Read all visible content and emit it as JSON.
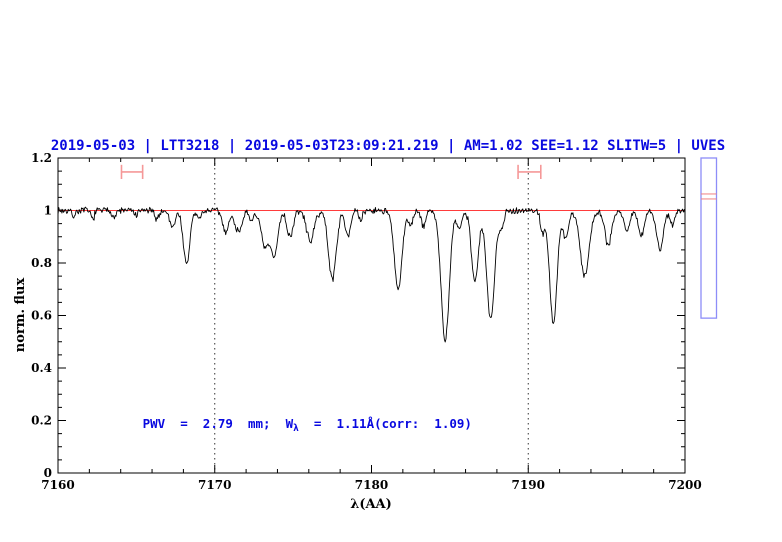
{
  "colors": {
    "accent_blue": "#0909e0",
    "trace_black": "#000000",
    "continuum_red": "#ff3b3b",
    "band_marker_red": "#f59898",
    "gauge_border_blue": "#8d8df8",
    "gauge_line_red": "#f08080",
    "dotted_line": "#333333",
    "background": "#ffffff"
  },
  "chart_data": {
    "type": "line",
    "title": "2019-05-03 | LTT3218 | 2019-05-03T23:09:21.219 | AM=1.02 SEE=1.12 SLITW=5 | UVES",
    "xlabel": "λ(AA)",
    "ylabel": "norm. flux",
    "xlim": [
      7160,
      7200
    ],
    "ylim": [
      0,
      1.2
    ],
    "grid": false,
    "x_ticks": [
      {
        "value": 7160,
        "label": "7160"
      },
      {
        "value": 7170,
        "label": "7170"
      },
      {
        "value": 7180,
        "label": "7180"
      },
      {
        "value": 7190,
        "label": "7190"
      },
      {
        "value": 7200,
        "label": "7200"
      }
    ],
    "x_minor_step": 2,
    "y_ticks": [
      {
        "value": 0,
        "label": "0"
      },
      {
        "value": 0.2,
        "label": "0.2"
      },
      {
        "value": 0.4,
        "label": "0.4"
      },
      {
        "value": 0.6,
        "label": "0.6"
      },
      {
        "value": 0.8,
        "label": "0.8"
      },
      {
        "value": 1,
        "label": "1"
      },
      {
        "value": 1.2,
        "label": "1.2"
      }
    ],
    "y_minor_step": 0.05,
    "continuum": {
      "level": 1.0
    },
    "dotted_vlines": [
      7170,
      7190
    ],
    "sample_step": 0.05,
    "noise_rms": 0.009,
    "absorption_lines": [
      [
        7161.0,
        0.02,
        0.12
      ],
      [
        7162.2,
        0.03,
        0.12
      ],
      [
        7163.6,
        0.025,
        0.12
      ],
      [
        7165.0,
        0.02,
        0.12
      ],
      [
        7166.3,
        0.03,
        0.15
      ],
      [
        7167.3,
        0.06,
        0.18
      ],
      [
        7168.2,
        0.21,
        0.2
      ],
      [
        7169.0,
        0.03,
        0.15
      ],
      [
        7170.7,
        0.08,
        0.2
      ],
      [
        7171.5,
        0.08,
        0.22
      ],
      [
        7172.3,
        0.04,
        0.15
      ],
      [
        7173.2,
        0.14,
        0.25
      ],
      [
        7173.8,
        0.17,
        0.22
      ],
      [
        7174.8,
        0.1,
        0.2
      ],
      [
        7176.1,
        0.115,
        0.25
      ],
      [
        7177.5,
        0.26,
        0.25
      ],
      [
        7178.5,
        0.09,
        0.18
      ],
      [
        7179.3,
        0.04,
        0.12
      ],
      [
        7181.7,
        0.3,
        0.25
      ],
      [
        7182.5,
        0.05,
        0.15
      ],
      [
        7183.3,
        0.06,
        0.15
      ],
      [
        7184.7,
        0.5,
        0.26
      ],
      [
        7185.6,
        0.07,
        0.15
      ],
      [
        7186.6,
        0.27,
        0.22
      ],
      [
        7187.6,
        0.42,
        0.25
      ],
      [
        7188.3,
        0.06,
        0.15
      ],
      [
        7190.9,
        0.08,
        0.13
      ],
      [
        7191.6,
        0.43,
        0.24
      ],
      [
        7192.4,
        0.1,
        0.18
      ],
      [
        7193.6,
        0.25,
        0.28
      ],
      [
        7195.1,
        0.13,
        0.22
      ],
      [
        7196.3,
        0.08,
        0.18
      ],
      [
        7197.2,
        0.1,
        0.18
      ],
      [
        7198.4,
        0.15,
        0.22
      ],
      [
        7199.2,
        0.05,
        0.15
      ]
    ],
    "band_markers": {
      "cap_half_flux": 0.027,
      "items": [
        {
          "x_min": 7164.05,
          "x_max": 7165.4,
          "y": 1.147
        },
        {
          "x_min": 7189.35,
          "x_max": 7190.8,
          "y": 1.147
        }
      ]
    },
    "side_gauge": {
      "flux_top": 1.2,
      "flux_bottom": 0.59,
      "lines": [
        1.063,
        1.044
      ]
    },
    "annotation": {
      "prefix": "PWV  =  2.79  mm;  W",
      "sub": "λ",
      "suffix": "  =  1.11Å(corr:  1.09)",
      "x": 7165.4,
      "y_flux": 0.171
    }
  }
}
